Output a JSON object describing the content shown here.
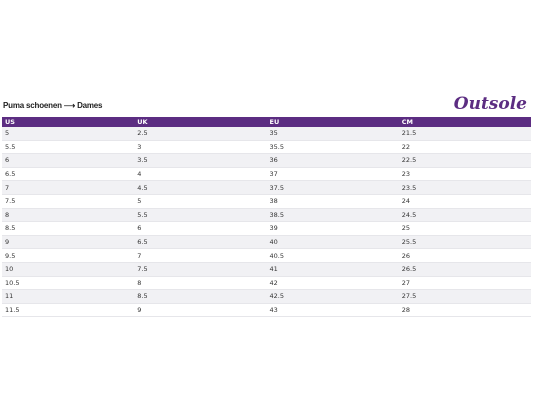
{
  "header": {
    "title": "Puma schoenen ⟶ Dames",
    "logo": "Outsole"
  },
  "table": {
    "columns": [
      "US",
      "UK",
      "EU",
      "CM"
    ],
    "rows": [
      [
        "5",
        "2.5",
        "35",
        "21.5"
      ],
      [
        "5.5",
        "3",
        "35.5",
        "22"
      ],
      [
        "6",
        "3.5",
        "36",
        "22.5"
      ],
      [
        "6.5",
        "4",
        "37",
        "23"
      ],
      [
        "7",
        "4.5",
        "37.5",
        "23.5"
      ],
      [
        "7.5",
        "5",
        "38",
        "24"
      ],
      [
        "8",
        "5.5",
        "38.5",
        "24.5"
      ],
      [
        "8.5",
        "6",
        "39",
        "25"
      ],
      [
        "9",
        "6.5",
        "40",
        "25.5"
      ],
      [
        "9.5",
        "7",
        "40.5",
        "26"
      ],
      [
        "10",
        "7.5",
        "41",
        "26.5"
      ],
      [
        "10.5",
        "8",
        "42",
        "27"
      ],
      [
        "11",
        "8.5",
        "42.5",
        "27.5"
      ],
      [
        "11.5",
        "9",
        "43",
        "28"
      ]
    ]
  }
}
